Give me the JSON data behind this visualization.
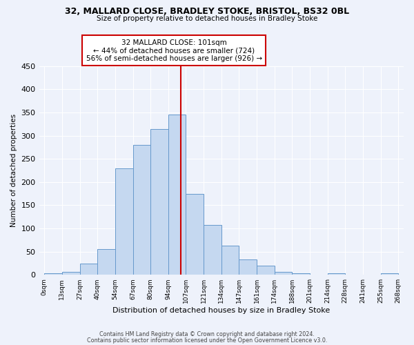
{
  "title1": "32, MALLARD CLOSE, BRADLEY STOKE, BRISTOL, BS32 0BL",
  "title2": "Size of property relative to detached houses in Bradley Stoke",
  "xlabel": "Distribution of detached houses by size in Bradley Stoke",
  "ylabel": "Number of detached properties",
  "bin_labels": [
    "0sqm",
    "13sqm",
    "27sqm",
    "40sqm",
    "54sqm",
    "67sqm",
    "80sqm",
    "94sqm",
    "107sqm",
    "121sqm",
    "134sqm",
    "147sqm",
    "161sqm",
    "174sqm",
    "188sqm",
    "201sqm",
    "214sqm",
    "228sqm",
    "241sqm",
    "255sqm",
    "268sqm"
  ],
  "bar_heights": [
    3,
    7,
    24,
    55,
    230,
    280,
    315,
    345,
    175,
    108,
    63,
    33,
    19,
    7,
    4,
    1,
    3,
    0,
    0,
    3
  ],
  "bar_color": "#c5d8f0",
  "bar_edge_color": "#6699cc",
  "vline_pos": 7.7,
  "vline_color": "#cc0000",
  "annotation_box_text": "32 MALLARD CLOSE: 101sqm\n← 44% of detached houses are smaller (724)\n56% of semi-detached houses are larger (926) →",
  "box_edge_color": "#cc0000",
  "ylim": [
    0,
    450
  ],
  "yticks": [
    0,
    50,
    100,
    150,
    200,
    250,
    300,
    350,
    400,
    450
  ],
  "bg_color": "#eef2fb",
  "grid_color": "#ffffff",
  "footer1": "Contains HM Land Registry data © Crown copyright and database right 2024.",
  "footer2": "Contains public sector information licensed under the Open Government Licence v3.0."
}
